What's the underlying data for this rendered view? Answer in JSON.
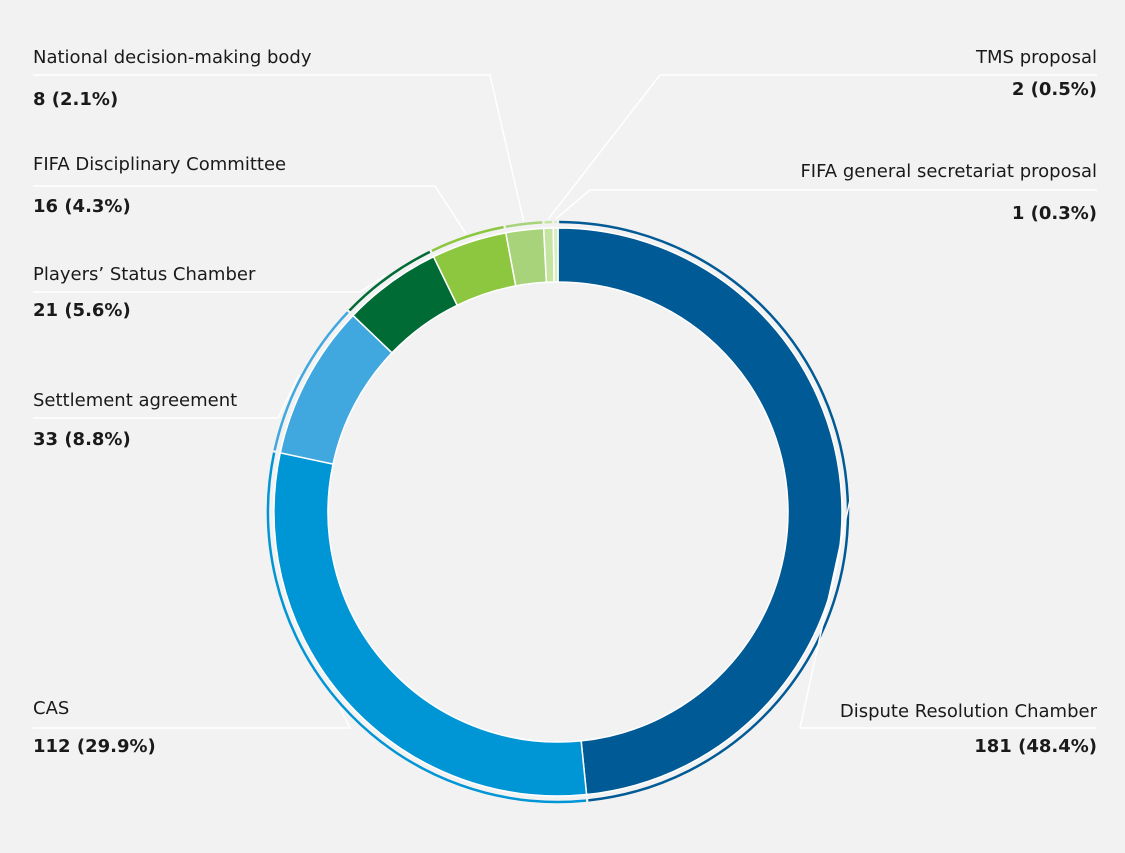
{
  "chart_data": {
    "type": "donut",
    "categories": [
      "Dispute Resolution Chamber",
      "CAS",
      "Settlement agreement",
      "Players’ Status Chamber",
      "FIFA Disciplinary Committee",
      "National decision-making body",
      "TMS proposal",
      "FIFA general secretariat proposal"
    ],
    "values": [
      181,
      112,
      33,
      21,
      16,
      8,
      2,
      1
    ],
    "value_labels": [
      "181 (48.4%)",
      "112 (29.9%)",
      "33 (8.8%)",
      "21 (5.6%)",
      "16 (4.3%)",
      "8 (2.1%)",
      "2 (0.5%)",
      "1 (0.3%)"
    ],
    "colors": [
      "#005a96",
      "#0096d6",
      "#41a8df",
      "#006b35",
      "#8dc63f",
      "#a8d37a",
      "#c5e3a1",
      "#d9eec0"
    ]
  }
}
